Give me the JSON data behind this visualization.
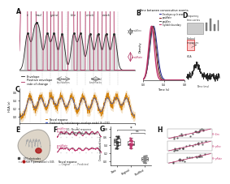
{
  "panel_A": {
    "words": [
      "it",
      "had",
      "gone",
      "like",
      "clock",
      "work"
    ],
    "word_x": [
      0.07,
      0.17,
      0.3,
      0.47,
      0.61,
      0.75
    ],
    "syl_x": [
      0.07,
      0.13,
      0.17,
      0.24,
      0.3,
      0.37,
      0.47,
      0.53,
      0.61,
      0.68,
      0.75,
      0.82
    ],
    "envelope_color": "#222222",
    "deriv_color": "#b03060",
    "shading_color": "#cccccc"
  },
  "panel_B": {
    "title": "Time between consecutive events",
    "colors": [
      "#1a1a8c",
      "#8b1a1a",
      "#555555",
      "#c0306a"
    ],
    "labels": [
      "Envelope-cycle onset",
      "peakRate",
      "peakEnv",
      "Syllable boundary"
    ],
    "means": [
      0.2,
      0.18,
      0.19,
      0.16
    ],
    "stds": [
      0.07,
      0.06,
      0.065,
      0.055
    ],
    "xlabel": "Time (s)",
    "ylabel": "Density",
    "xticks": [
      0.0,
      0.4,
      0.8
    ]
  },
  "panel_C": {
    "neural_color": "#d4820a",
    "predicted_color": "#3050c8",
    "r2": "0.93",
    "xlabel": "Time (s)",
    "ylabel": "HGA (z)",
    "legend": [
      "Neural response",
      "Predicted by instantaneous envelope model  R² = 0.93"
    ]
  },
  "panel_D": {
    "hga_color": "#222222",
    "labels": [
      "Frequency\ntime-series",
      "Evoked\nresponses",
      "HGA"
    ]
  },
  "panel_E": {
    "brain_color": "#d8cfc4",
    "sulci_color": "#aaaaaa",
    "highlight_color": "#8b1010",
    "legend_square": "#444444",
    "legend_circle": "#8b1010"
  },
  "panel_F": {
    "neural_color": "#888888",
    "predicted_color": "#c0306a",
    "peakEnv_r2": "0.67",
    "peakRate_r2": "0.70",
    "title": "E1: Neural response\npredicted by landmark models"
  },
  "panel_G": {
    "categories": [
      "Data",
      "Original",
      "Shuffled"
    ],
    "median_vals": [
      0.45,
      0.42,
      0.05
    ],
    "q1_vals": [
      0.35,
      0.32,
      0.01
    ],
    "q3_vals": [
      0.58,
      0.55,
      0.1
    ],
    "dot_colors": [
      "#333333",
      "#c0306a",
      "#888888"
    ],
    "ylabel": "Cross-validated test r²"
  },
  "panel_H": {
    "scatter_color": "#333333",
    "line_color": "#c0306a",
    "diag_color": "#aaaaaa",
    "labels": [
      "R² Env",
      "R² pEnv",
      "R² pRate"
    ]
  },
  "bg_color": "#ffffff",
  "label_color": "#111111",
  "label_size": 5.5
}
